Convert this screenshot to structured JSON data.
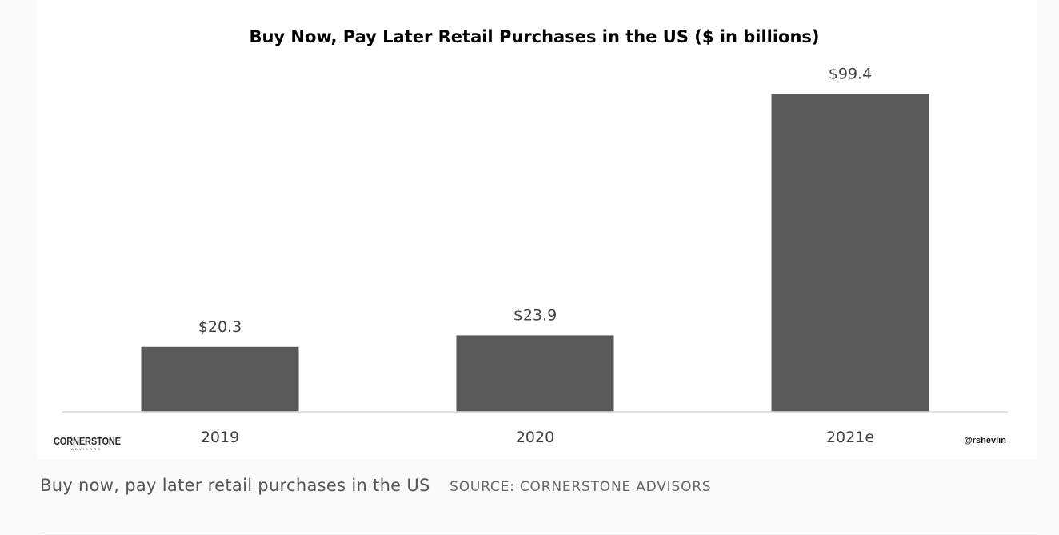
{
  "chart_data": {
    "type": "bar",
    "title": "Buy Now, Pay Later Retail Purchases in the US ($ in billions)",
    "categories": [
      "2019",
      "2020",
      "2021e"
    ],
    "values": [
      20.3,
      23.9,
      99.4
    ],
    "data_labels": [
      "$20.3",
      "$23.9",
      "$99.4"
    ],
    "xlabel": "",
    "ylabel": "",
    "ylim": [
      0,
      100
    ],
    "grid": false,
    "bar_color": "#595959"
  },
  "branding": {
    "logo_main": "CORNERSTONE",
    "logo_sub": "ADVISORS",
    "handle": "@rshevlin"
  },
  "caption": {
    "text": "Buy now, pay later retail purchases in the US",
    "source": "SOURCE: CORNERSTONE ADVISORS"
  }
}
